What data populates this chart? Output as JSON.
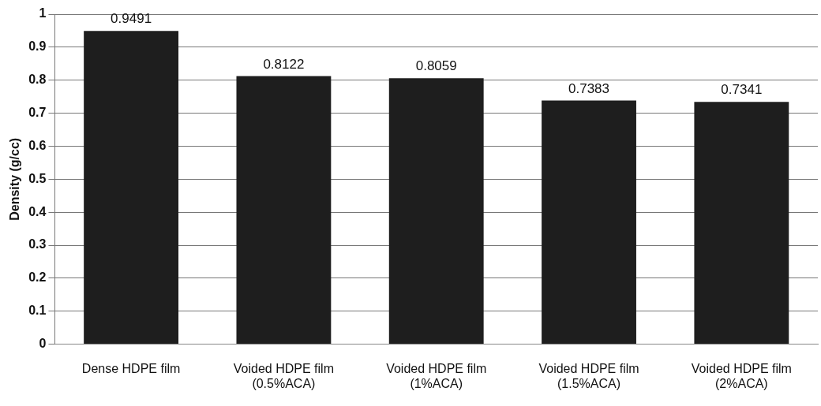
{
  "chart_data": {
    "type": "bar",
    "ylabel": "Density (g/cc)",
    "categories": [
      "Dense HDPE film",
      "Voided HDPE film\n(0.5%ACA)",
      "Voided HDPE film\n(1%ACA)",
      "Voided HDPE film\n(1.5%ACA)",
      "Voided HDPE film\n(2%ACA)"
    ],
    "values": [
      0.9491,
      0.8122,
      0.8059,
      0.7383,
      0.7341
    ],
    "color": "#1e1e1e",
    "ylim": [
      0,
      1
    ],
    "yticks": [
      0,
      0.1,
      0.2,
      0.3,
      0.4,
      0.5,
      0.6,
      0.7,
      0.8,
      0.9,
      1
    ],
    "grid": "y",
    "legend": false,
    "data_labels": true
  }
}
